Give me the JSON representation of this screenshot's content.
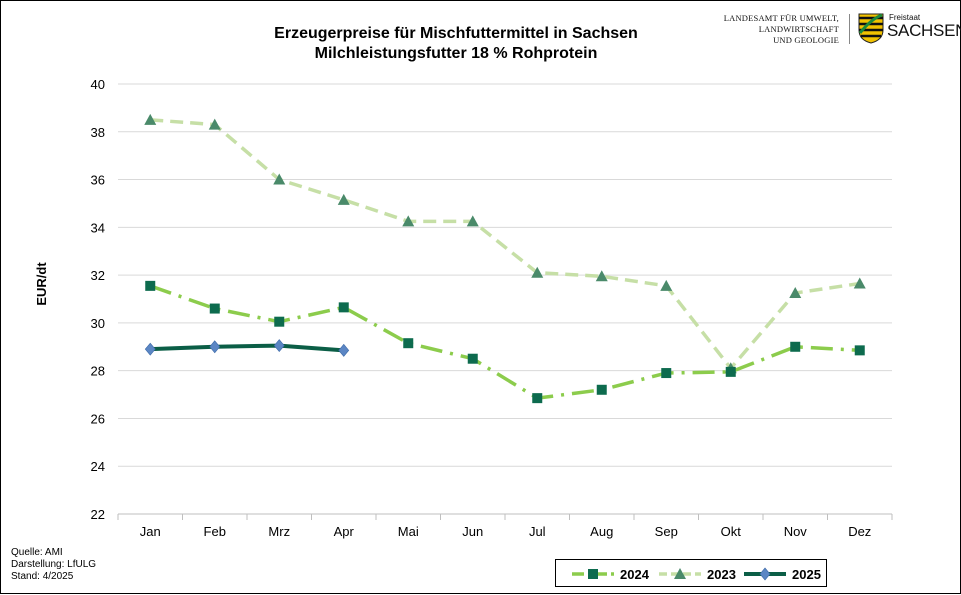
{
  "header": {
    "title_line1": "Erzeugerpreise für Mischfuttermittel in Sachsen",
    "title_line2": "Milchleistungsfutter 18 % Rohprotein"
  },
  "logo": {
    "line1": "LANDESAMT FÜR UMWELT,",
    "line2": "LANDWIRTSCHAFT",
    "line3": "UND GEOLOGIE",
    "freistaat": "Freistaat",
    "sachsen": "SACHSEN"
  },
  "footer": {
    "source": "Quelle:  AMI",
    "author": "Darstellung: LfULG",
    "date": "Stand: 4/2025"
  },
  "colors": {
    "s2024": "#8ccc4c",
    "s2024_marker": "#0d6b4e",
    "s2023": "#c6dfa6",
    "s2023_marker": "#4a8a6a",
    "s2025": "#0b5e46",
    "s2025_marker": "#5b86c4",
    "grid": "#d9d9d9"
  },
  "chart_data": {
    "type": "line",
    "title": "Erzeugerpreise für Mischfuttermittel in Sachsen",
    "subtitle": "Milchleistungsfutter 18 % Rohprotein",
    "xlabel": "",
    "ylabel": "EUR/dt",
    "ylim": [
      22,
      40
    ],
    "yticks": [
      22,
      24,
      26,
      28,
      30,
      32,
      34,
      36,
      38,
      40
    ],
    "grid": true,
    "legend_position": "bottom-right",
    "categories": [
      "Jan",
      "Feb",
      "Mrz",
      "Apr",
      "Mai",
      "Jun",
      "Jul",
      "Aug",
      "Sep",
      "Okt",
      "Nov",
      "Dez"
    ],
    "series": [
      {
        "name": "2024",
        "values": [
          31.55,
          30.6,
          30.05,
          30.65,
          29.15,
          28.5,
          26.85,
          27.2,
          27.9,
          27.95,
          29.0,
          28.85
        ],
        "style": "dash-dot",
        "marker": "square"
      },
      {
        "name": "2023",
        "values": [
          38.5,
          38.3,
          36.0,
          35.15,
          34.25,
          34.25,
          32.1,
          31.95,
          31.55,
          28.1,
          31.25,
          31.65
        ],
        "style": "dashed",
        "marker": "triangle"
      },
      {
        "name": "2025",
        "values": [
          28.9,
          29.0,
          29.05,
          28.85,
          null,
          null,
          null,
          null,
          null,
          null,
          null,
          null
        ],
        "style": "solid",
        "marker": "diamond"
      }
    ]
  }
}
